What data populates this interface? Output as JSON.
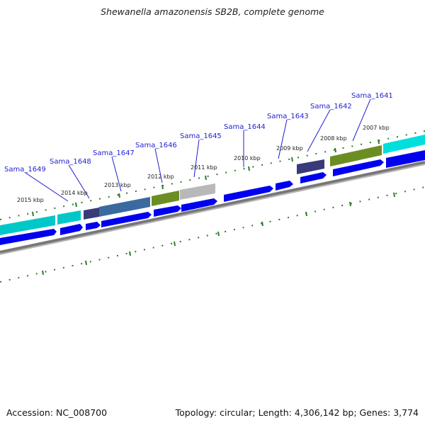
{
  "title": "Shewanella amazonensis SB2B, complete genome",
  "footer": {
    "accession": "Accession: NC_008700",
    "summary": "Topology: circular; Length: 4,306,142 bp; Genes: 3,774"
  },
  "colors": {
    "gene_label": "#1f1fd0",
    "cds_arrow": "#0000ee",
    "ticks": "#2a7d2a",
    "backbone": "#777777",
    "feature_cyan": "#00dede",
    "feature_olive": "#6b8e23",
    "feature_navy": "#3a3a7a",
    "feature_steel": "#3a6aa0",
    "feature_gray": "#b8b8b8"
  },
  "kbp_labels": [
    "2007 kbp",
    "2008 kbp",
    "2009 kbp",
    "2010 kbp",
    "2011 kbp",
    "2012 kbp",
    "2013 kbp",
    "2014 kbp",
    "2015 kbp"
  ],
  "gene_labels": [
    "Sama_1641",
    "Sama_1642",
    "Sama_1643",
    "Sama_1644",
    "Sama_1645",
    "Sama_1646",
    "Sama_1647",
    "Sama_1648",
    "Sama_1649"
  ]
}
